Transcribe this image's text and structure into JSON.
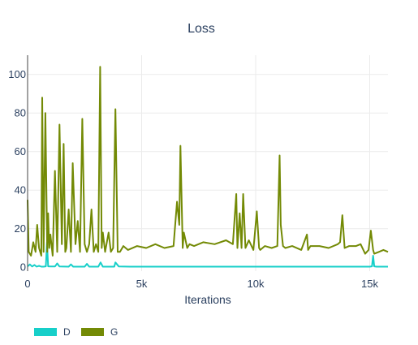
{
  "chart_data": {
    "type": "line",
    "title": "Loss",
    "xlabel": "Iterations",
    "ylabel": "",
    "xlim": [
      0,
      15800
    ],
    "ylim": [
      -2,
      110
    ],
    "x_ticks": [
      0,
      5000,
      10000,
      15000
    ],
    "x_tick_labels": [
      "0",
      "5k",
      "10k",
      "15k"
    ],
    "y_ticks": [
      0,
      20,
      40,
      60,
      80,
      100
    ],
    "y_tick_labels": [
      "0",
      "20",
      "40",
      "60",
      "80",
      "100"
    ],
    "grid": true,
    "legend_position": "bottom-left",
    "series": [
      {
        "name": "D",
        "color": "#17cfc9",
        "x": [
          0,
          100,
          200,
          300,
          400,
          500,
          600,
          700,
          800,
          850,
          900,
          1000,
          1200,
          1300,
          1400,
          1800,
          1900,
          2000,
          2500,
          2600,
          2700,
          3100,
          3200,
          3300,
          3800,
          3850,
          4000,
          4500,
          6000,
          8000,
          10000,
          12000,
          14000,
          15000,
          15100,
          15150,
          15200,
          15300,
          15800
        ],
        "y": [
          0.5,
          1.5,
          0.4,
          1.2,
          0.3,
          0.8,
          0.3,
          0.3,
          0.5,
          13,
          0.5,
          0.4,
          0.4,
          2,
          0.4,
          0.3,
          1.5,
          0.3,
          0.3,
          1.8,
          0.3,
          0.3,
          2.5,
          0.3,
          0.3,
          2.5,
          0.4,
          0.3,
          0.3,
          0.3,
          0.3,
          0.3,
          0.3,
          0.3,
          0.5,
          6,
          0.5,
          0.3,
          0.3
        ]
      },
      {
        "name": "G",
        "color": "#738a05",
        "x": [
          0,
          50,
          150,
          250,
          350,
          420,
          500,
          600,
          640,
          700,
          780,
          860,
          900,
          950,
          1000,
          1100,
          1200,
          1300,
          1400,
          1500,
          1580,
          1650,
          1700,
          1800,
          1900,
          1980,
          2100,
          2200,
          2300,
          2400,
          2500,
          2600,
          2700,
          2800,
          2900,
          3000,
          3100,
          3180,
          3250,
          3300,
          3400,
          3550,
          3650,
          3750,
          3850,
          3950,
          4050,
          4200,
          4400,
          4800,
          5200,
          5600,
          6000,
          6400,
          6550,
          6650,
          6700,
          6800,
          6850,
          7000,
          7100,
          7300,
          7700,
          8200,
          8700,
          9000,
          9150,
          9200,
          9300,
          9380,
          9450,
          9550,
          9700,
          9900,
          10050,
          10150,
          10200,
          10400,
          10700,
          10950,
          11050,
          11100,
          11200,
          11300,
          11600,
          12000,
          12250,
          12300,
          12400,
          12800,
          13200,
          13600,
          13700,
          13800,
          13900,
          14100,
          14400,
          14600,
          14800,
          14950,
          15050,
          15150,
          15200,
          15400,
          15600,
          15800
        ],
        "y": [
          35,
          8,
          6,
          13,
          8,
          22,
          10,
          6,
          88,
          8,
          80,
          8,
          28,
          10,
          17,
          6,
          50,
          8,
          74,
          12,
          64,
          8,
          10,
          30,
          8,
          54,
          12,
          24,
          8,
          77,
          12,
          8,
          12,
          30,
          8,
          12,
          8,
          104,
          10,
          18,
          8,
          18,
          8,
          10,
          82,
          8,
          8,
          11,
          9,
          11,
          10,
          12,
          10,
          11,
          34,
          22,
          63,
          10,
          18,
          10,
          12,
          11,
          13,
          12,
          14,
          12,
          38,
          10,
          28,
          10,
          38,
          10,
          14,
          9,
          29,
          10,
          9,
          11,
          10,
          11,
          58,
          22,
          11,
          10,
          11,
          9,
          17,
          9,
          11,
          11,
          10,
          12,
          13,
          27,
          10,
          11,
          11,
          12,
          7,
          9,
          19,
          9,
          7,
          8,
          9,
          8
        ]
      }
    ]
  }
}
